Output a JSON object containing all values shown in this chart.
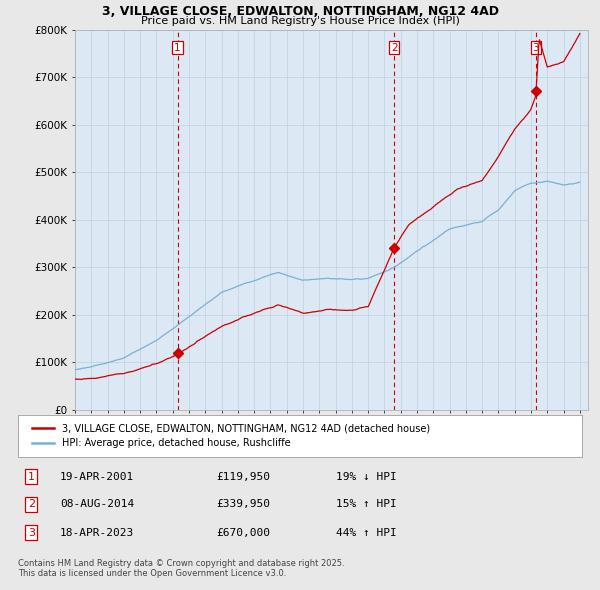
{
  "title_line1": "3, VILLAGE CLOSE, EDWALTON, NOTTINGHAM, NG12 4AD",
  "title_line2": "Price paid vs. HM Land Registry's House Price Index (HPI)",
  "legend_label_red": "3, VILLAGE CLOSE, EDWALTON, NOTTINGHAM, NG12 4AD (detached house)",
  "legend_label_blue": "HPI: Average price, detached house, Rushcliffe",
  "footer_line1": "Contains HM Land Registry data © Crown copyright and database right 2025.",
  "footer_line2": "This data is licensed under the Open Government Licence v3.0.",
  "transactions": [
    {
      "num": "1",
      "date": "19-APR-2001",
      "price": "£119,950",
      "change": "19% ↓ HPI",
      "year": 2001.3
    },
    {
      "num": "2",
      "date": "08-AUG-2014",
      "price": "£339,950",
      "change": "15% ↑ HPI",
      "year": 2014.6
    },
    {
      "num": "3",
      "date": "18-APR-2023",
      "price": "£670,000",
      "change": "44% ↑ HPI",
      "year": 2023.3
    }
  ],
  "xmin": 1995.0,
  "xmax": 2026.5,
  "ymin": 0,
  "ymax": 800000,
  "yticks": [
    0,
    100000,
    200000,
    300000,
    400000,
    500000,
    600000,
    700000,
    800000
  ],
  "ytick_labels": [
    "£0",
    "£100K",
    "£200K",
    "£300K",
    "£400K",
    "£500K",
    "£600K",
    "£700K",
    "£800K"
  ],
  "background_color": "#e8e8e8",
  "plot_bg_color": "#dce9f5",
  "grid_color": "#c0d0e0",
  "red_color": "#cc0000",
  "blue_color": "#7ab0d4"
}
